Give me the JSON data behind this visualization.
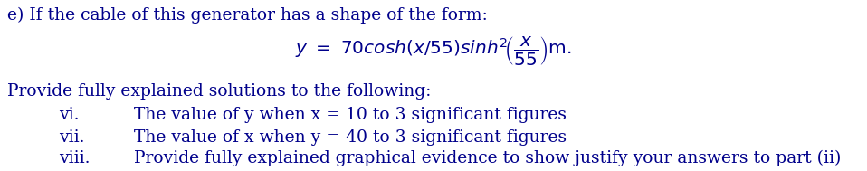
{
  "bg_color": "#ffffff",
  "text_color": "#00008B",
  "line1": "e) If the cable of this generator has a shape of the form:",
  "line3": "Provide fully explained solutions to the following:",
  "item_vi_label": "vi.",
  "item_vi_text": "The value of y when x = 10 to 3 significant figures",
  "item_vii_label": "vii.",
  "item_vii_text": "The value of x when y = 40 to 3 significant figures",
  "item_viii_label": "viii.",
  "item_viii_text": "Provide fully explained graphical evidence to show justify your answers to part (ii)",
  "fig_width": 9.58,
  "fig_height": 1.89,
  "dpi": 100,
  "font_size": 13.5,
  "formula_font_size": 14.5
}
